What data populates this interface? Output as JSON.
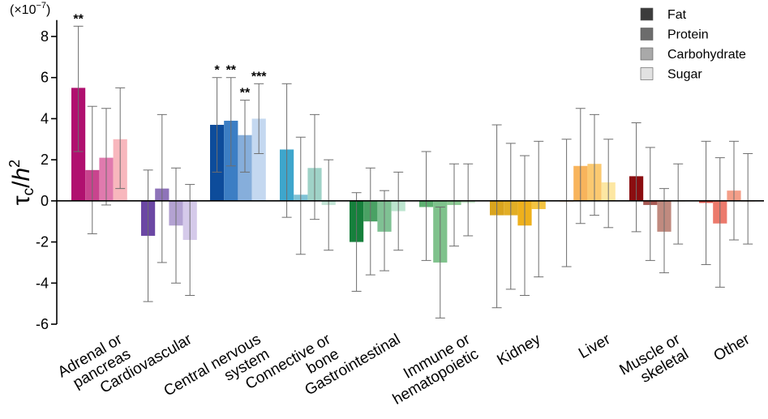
{
  "chart_data": {
    "type": "bar",
    "ylabel_base": "τ",
    "ylabel_sub": "c",
    "ylabel_div": "/",
    "ylabel_h": "h",
    "ylabel_sup": "2",
    "scale_prefix": "(×10",
    "scale_exp": "−7",
    "scale_suffix": ")",
    "ylim": [
      -6,
      8.8
    ],
    "yticks": [
      -6,
      -4,
      -2,
      0,
      2,
      4,
      6,
      8
    ],
    "ytick_labels": [
      "-6",
      "-4",
      "-2",
      "0",
      "2",
      "4",
      "6",
      "8"
    ],
    "legend": [
      {
        "label": "Fat",
        "color": "#3c3c3c"
      },
      {
        "label": "Protein",
        "color": "#6c6c6c"
      },
      {
        "label": "Carbohydrate",
        "color": "#a9a9a9"
      },
      {
        "label": "Sugar",
        "color": "#e2e2e2"
      }
    ],
    "series_names": [
      "Fat",
      "Protein",
      "Carbohydrate",
      "Sugar"
    ],
    "categories": [
      {
        "label_lines": [
          "Adrenal or",
          "pancreas"
        ],
        "colors": [
          "#b0106f",
          "#c9448e",
          "#e07aae",
          "#f8b7bd"
        ],
        "values": [
          5.5,
          1.5,
          2.1,
          3.0
        ],
        "err_low": [
          2.4,
          -1.6,
          -0.2,
          0.6
        ],
        "err_high": [
          8.5,
          4.6,
          4.5,
          5.5
        ],
        "sig": [
          "**",
          "",
          "",
          ""
        ]
      },
      {
        "label_lines": [
          "Cardiovascular"
        ],
        "colors": [
          "#6b47a4",
          "#8e73b9",
          "#b3a2d2",
          "#d5caea"
        ],
        "values": [
          -1.7,
          0.6,
          -1.2,
          -1.9
        ],
        "err_low": [
          -4.9,
          -3.0,
          -4.0,
          -4.6
        ],
        "err_high": [
          1.5,
          4.2,
          1.6,
          0.8
        ],
        "sig": [
          "",
          "",
          "",
          ""
        ]
      },
      {
        "label_lines": [
          "Central nervous",
          "system"
        ],
        "colors": [
          "#0d4c9b",
          "#3c7ec4",
          "#86aedb",
          "#c4d8f0"
        ],
        "values": [
          3.7,
          3.9,
          3.2,
          4.0
        ],
        "err_low": [
          1.4,
          1.7,
          1.4,
          2.3
        ],
        "err_high": [
          6.0,
          6.0,
          4.9,
          5.7
        ],
        "sig": [
          "*",
          "**",
          "**",
          "***"
        ]
      },
      {
        "label_lines": [
          "Connective or",
          "bone"
        ],
        "colors": [
          "#3ea6cc",
          "#7fc3d6",
          "#9fd2c7",
          "#c3e5d6"
        ],
        "values": [
          2.5,
          0.3,
          1.6,
          -0.2
        ],
        "err_low": [
          -0.8,
          -2.6,
          -0.9,
          -2.4
        ],
        "err_high": [
          5.7,
          3.1,
          4.2,
          2.0
        ],
        "sig": [
          "",
          "",
          "",
          ""
        ]
      },
      {
        "label_lines": [
          "Gastrointestinal"
        ],
        "colors": [
          "#16803c",
          "#4aa164",
          "#7fc193",
          "#bde5cf"
        ],
        "values": [
          -2.0,
          -1.0,
          -1.5,
          -0.5
        ],
        "err_low": [
          -4.4,
          -3.6,
          -3.4,
          -2.4
        ],
        "err_high": [
          0.4,
          1.6,
          0.5,
          1.4
        ],
        "sig": [
          "",
          "",
          "",
          ""
        ]
      },
      {
        "label_lines": [
          "Immune or",
          "hematopoietic"
        ],
        "colors": [
          "#5eb071",
          "#7fc28c",
          "#8dca94",
          "#c9e7cc"
        ],
        "values": [
          -0.3,
          -3.0,
          -0.2,
          -0.1
        ],
        "err_low": [
          -2.9,
          -5.7,
          -2.2,
          -1.7
        ],
        "err_high": [
          2.4,
          -0.3,
          1.8,
          1.8
        ],
        "sig": [
          "",
          "",
          "",
          ""
        ]
      },
      {
        "label_lines": [
          "Kidney"
        ],
        "colors": [
          "#d9a41e",
          "#e2ae26",
          "#eeb01c",
          "#f4c441"
        ],
        "values": [
          -0.7,
          -0.7,
          -1.2,
          -0.4
        ],
        "err_low": [
          -5.2,
          -4.3,
          -4.6,
          -3.7
        ],
        "err_high": [
          3.7,
          2.8,
          2.2,
          2.9
        ],
        "sig": [
          "",
          "",
          "",
          ""
        ]
      },
      {
        "label_lines": [
          "Liver"
        ],
        "colors": [
          "#f4a34d",
          "#f8b45c",
          "#fbc970",
          "#fde7a2"
        ],
        "values": [
          0.0,
          1.7,
          1.8,
          0.9
        ],
        "err_low": [
          -3.2,
          -1.1,
          -0.7,
          -1.3
        ],
        "err_high": [
          3.0,
          4.5,
          4.2,
          3.0
        ],
        "sig": [
          "",
          "",
          "",
          ""
        ]
      },
      {
        "label_lines": [
          "Muscle or",
          "skeletal"
        ],
        "colors": [
          "#8b0d10",
          "#a85a54",
          "#c08a7f",
          "#e7cbc3"
        ],
        "values": [
          1.2,
          -0.2,
          -1.5,
          0.0
        ],
        "err_low": [
          -1.5,
          -2.9,
          -3.5,
          -2.1
        ],
        "err_high": [
          3.8,
          2.6,
          0.6,
          1.8
        ],
        "sig": [
          "",
          "",
          "",
          ""
        ]
      },
      {
        "label_lines": [
          "Other"
        ],
        "colors": [
          "#e05a50",
          "#ec7a6c",
          "#f49e88",
          "#f9c4b3"
        ],
        "values": [
          -0.1,
          -1.1,
          0.5,
          0.0
        ],
        "err_low": [
          -3.1,
          -4.2,
          -1.9,
          -2.1
        ],
        "err_high": [
          2.9,
          2.1,
          2.9,
          2.3
        ],
        "sig": [
          "",
          "",
          "",
          ""
        ]
      }
    ]
  }
}
